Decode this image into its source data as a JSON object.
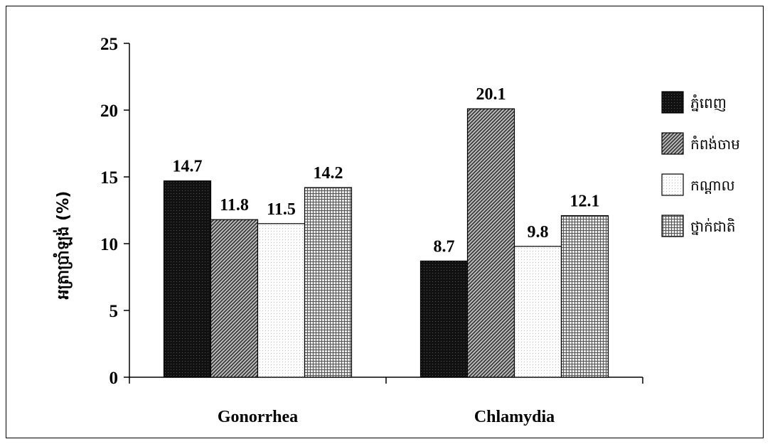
{
  "chart_data": {
    "type": "bar",
    "title": "",
    "ylabel": "អត្រាប្រាំឡង់ (%)",
    "xlabel": "",
    "categories": [
      "Gonorrhea",
      "Chlamydia"
    ],
    "series": [
      {
        "name": "ភ្នំពេញ",
        "values": [
          14.7,
          8.7
        ],
        "pattern": "black"
      },
      {
        "name": "កំពង់ចាម",
        "values": [
          11.8,
          20.1
        ],
        "pattern": "diagonal"
      },
      {
        "name": "កណ្ដាល",
        "values": [
          11.5,
          9.8
        ],
        "pattern": "dotted"
      },
      {
        "name": "ថ្នាក់ជាតិ",
        "values": [
          14.2,
          12.1
        ],
        "pattern": "grid"
      }
    ],
    "ylim": [
      0,
      25
    ],
    "yticks": [
      "0",
      "5",
      "10",
      "15",
      "20",
      "25"
    ],
    "value_labels": [
      [
        "14.7",
        "8.7"
      ],
      [
        "11.8",
        "20.1"
      ],
      [
        "11.5",
        "9.8"
      ],
      [
        "14.2",
        "12.1"
      ]
    ],
    "grid": false,
    "legend_position": "right"
  }
}
